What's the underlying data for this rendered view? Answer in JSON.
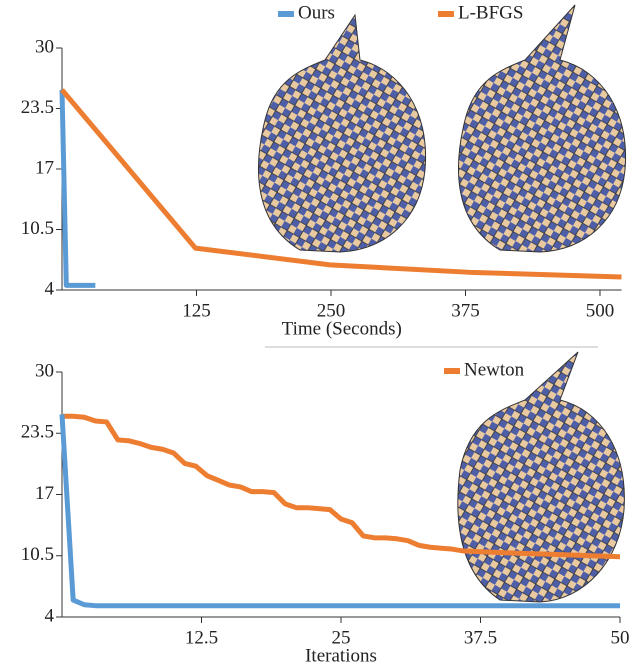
{
  "chart_data": [
    {
      "type": "line",
      "xlabel": "Time (Seconds)",
      "xlim": [
        0,
        520
      ],
      "xticks": [
        125,
        250,
        375,
        500
      ],
      "ylim": [
        4,
        30
      ],
      "yticks": [
        4,
        10.5,
        17,
        23.5,
        30
      ],
      "series": [
        {
          "name": "Ours",
          "color": "#5b9bd5",
          "x": [
            0,
            4,
            31
          ],
          "values": [
            25.5,
            4.5,
            4.5
          ]
        },
        {
          "name": "L-BFGS",
          "color": "#ed7d31",
          "x": [
            0,
            124,
            249,
            379,
            520
          ],
          "values": [
            25.5,
            8.5,
            6.7,
            5.9,
            5.4
          ]
        }
      ]
    },
    {
      "type": "line",
      "xlabel": "Iterations",
      "xlim": [
        0,
        50
      ],
      "xticks": [
        12.5,
        25,
        37.5,
        50
      ],
      "ylim": [
        4,
        30
      ],
      "yticks": [
        4,
        10.5,
        17,
        23.5,
        30
      ],
      "series": [
        {
          "name": "Newton",
          "color": "#ed7d31",
          "x": [
            0,
            1,
            2,
            3,
            4,
            5,
            6,
            7,
            8,
            9,
            10,
            11,
            12,
            13,
            14,
            15,
            16,
            17,
            18,
            19,
            20,
            21,
            22,
            23,
            24,
            25,
            26,
            27,
            28,
            29,
            30,
            31,
            32,
            33,
            34,
            35,
            36,
            40,
            45,
            50
          ],
          "values": [
            25.3,
            25.3,
            25.2,
            24.8,
            24.7,
            22.8,
            22.7,
            22.4,
            22.0,
            21.8,
            21.4,
            20.3,
            20.0,
            19.0,
            18.5,
            18.0,
            17.8,
            17.3,
            17.3,
            17.2,
            16.0,
            15.6,
            15.6,
            15.5,
            15.4,
            14.4,
            14.0,
            12.6,
            12.4,
            12.4,
            12.3,
            12.1,
            11.6,
            11.4,
            11.3,
            11.2,
            11.0,
            10.8,
            10.6,
            10.4
          ]
        },
        {
          "color": "#5b9bd5",
          "x": [
            0,
            1,
            2,
            3,
            50
          ],
          "values": [
            25.5,
            5.8,
            5.3,
            5.2,
            5.2
          ]
        }
      ]
    }
  ]
}
